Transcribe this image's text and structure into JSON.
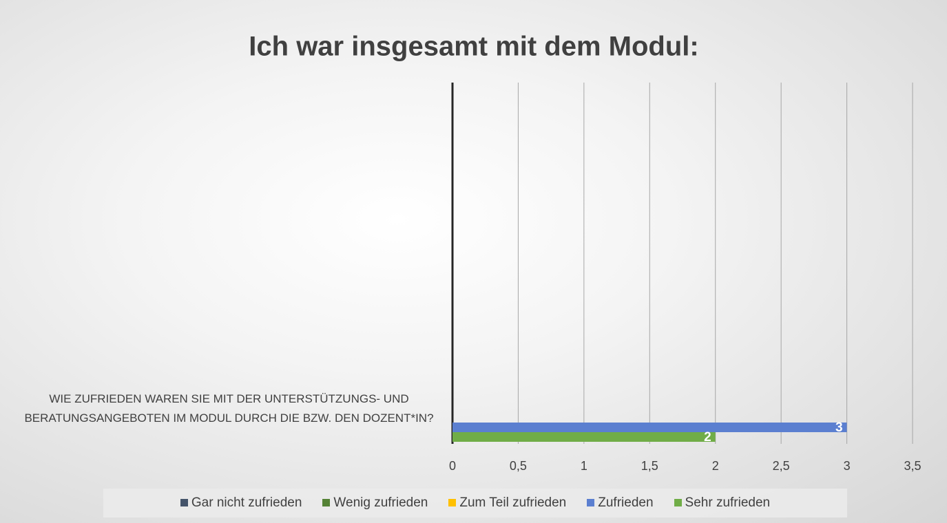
{
  "chart_data": {
    "type": "bar",
    "orientation": "horizontal",
    "title": "Ich war insgesamt mit dem Modul:",
    "categories": [
      "WIE ZUFRIEDEN WAREN SIE MIT DER UNTERSTÜTZUNGS- UND BERATUNGSANGEBOTEN IM MODUL DURCH DIE BZW. DEN DOZENT*IN?"
    ],
    "series": [
      {
        "name": "Gar nicht zufrieden",
        "color": "#44546a",
        "values": [
          null
        ]
      },
      {
        "name": "Wenig zufrieden",
        "color": "#548235",
        "values": [
          null
        ]
      },
      {
        "name": "Zum Teil zufrieden",
        "color": "#ffc000",
        "values": [
          null
        ]
      },
      {
        "name": "Zufrieden",
        "color": "#5b7fd0",
        "values": [
          3
        ]
      },
      {
        "name": "Sehr zufrieden",
        "color": "#70ad47",
        "values": [
          2
        ]
      }
    ],
    "xlim": [
      0,
      3.5
    ],
    "xticks": [
      0,
      {
        "value": 0.5,
        "label": "0,5"
      },
      1,
      {
        "value": 1.5,
        "label": "1,5"
      },
      2,
      {
        "value": 2.5,
        "label": "2,5"
      },
      3,
      {
        "value": 3.5,
        "label": "3,5"
      }
    ],
    "grid": true,
    "legend": "bottom"
  }
}
